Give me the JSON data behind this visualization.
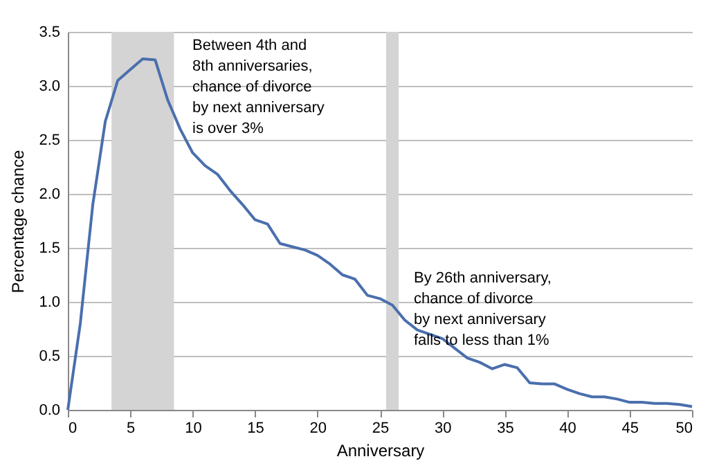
{
  "chart_data": {
    "type": "line",
    "xlabel": "Anniversary",
    "ylabel": "Percentage chance",
    "x": [
      0,
      1,
      2,
      3,
      4,
      5,
      6,
      7,
      8,
      9,
      10,
      11,
      12,
      13,
      14,
      15,
      16,
      17,
      18,
      19,
      20,
      21,
      22,
      23,
      24,
      25,
      26,
      27,
      28,
      29,
      30,
      31,
      32,
      33,
      34,
      35,
      36,
      37,
      38,
      39,
      40,
      41,
      42,
      43,
      44,
      45,
      46,
      47,
      48,
      49,
      50
    ],
    "series": [
      {
        "color": "#4a6fad",
        "values": [
          0,
          0.8,
          1.9,
          2.67,
          3.05,
          3.15,
          3.25,
          3.24,
          2.87,
          2.6,
          2.38,
          2.26,
          2.18,
          2.03,
          1.9,
          1.76,
          1.72,
          1.54,
          1.51,
          1.48,
          1.43,
          1.35,
          1.25,
          1.21,
          1.06,
          1.03,
          0.97,
          0.83,
          0.74,
          0.7,
          0.66,
          0.57,
          0.48,
          0.44,
          0.38,
          0.42,
          0.39,
          0.25,
          0.24,
          0.24,
          0.19,
          0.15,
          0.12,
          0.12,
          0.1,
          0.07,
          0.07,
          0.06,
          0.06,
          0.05,
          0.03
        ]
      }
    ],
    "xlim": [
      0,
      50
    ],
    "xticks": [
      0,
      5,
      10,
      15,
      20,
      25,
      30,
      35,
      40,
      45,
      50
    ],
    "ylim": [
      0,
      3.5
    ],
    "yticks": [
      {
        "value": 0,
        "label": "0.0"
      },
      0.5,
      {
        "value": 1,
        "label": "1.0"
      },
      1.5,
      {
        "value": 2,
        "label": "2.0"
      },
      2.5,
      {
        "value": 3,
        "label": "3.0"
      },
      3.5
    ],
    "grid": "y",
    "marker": "none",
    "line_style": "solid",
    "bands": [
      {
        "axis": "x",
        "from": 3.5,
        "to": 8.5,
        "color": "#d4d4d4"
      },
      {
        "axis": "x",
        "from": 25.5,
        "to": 26.5,
        "color": "#d4d4d4"
      }
    ],
    "annotations": [
      "Between 4th and\n8th anniversaries,\nchance of divorce\nby next anniversary\nis over 3%",
      "By 26th anniversary,\nchance of divorce\nby next anniversary\nfalls to less than 1%"
    ]
  }
}
